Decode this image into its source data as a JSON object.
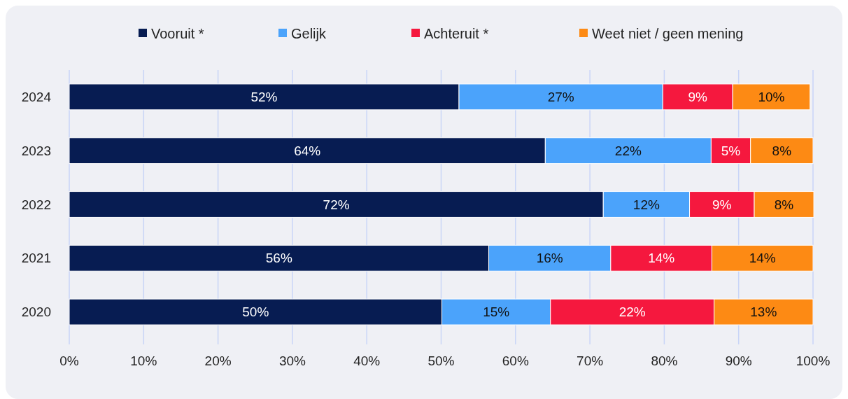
{
  "chart_data": {
    "type": "bar",
    "orientation": "horizontal",
    "stacked": true,
    "categories": [
      "2024",
      "2023",
      "2022",
      "2021",
      "2020"
    ],
    "series": [
      {
        "name": "Vooruit *",
        "color": "#071c52",
        "values": [
          52.4,
          64.0,
          71.8,
          56.4,
          50.1
        ],
        "value_labels": [
          "52%",
          "64%",
          "72%",
          "56%",
          "50%"
        ]
      },
      {
        "name": "Gelijk",
        "color": "#4ba3fb",
        "values": [
          27.4,
          22.3,
          11.6,
          16.4,
          14.6
        ],
        "value_labels": [
          "27%",
          "22%",
          "12%",
          "16%",
          "15%"
        ]
      },
      {
        "name": "Achteruit *",
        "color": "#f5183e",
        "values": [
          9.4,
          5.3,
          8.7,
          13.6,
          22.0
        ],
        "value_labels": [
          "9%",
          "5%",
          "9%",
          "14%",
          "22%"
        ]
      },
      {
        "name": "Weet niet / geen mening",
        "color": "#fd8a14",
        "values": [
          10.4,
          8.4,
          8.0,
          13.6,
          13.3
        ],
        "value_labels": [
          "10%",
          "8%",
          "8%",
          "14%",
          "13%"
        ]
      }
    ],
    "xlim": [
      0,
      100
    ],
    "xticks": [
      {
        "value": 0,
        "label": "0%"
      },
      {
        "value": 10,
        "label": "10%"
      },
      {
        "value": 20,
        "label": "20%"
      },
      {
        "value": 30,
        "label": "30%"
      },
      {
        "value": 40,
        "label": "40%"
      },
      {
        "value": 50,
        "label": "50%"
      },
      {
        "value": 60,
        "label": "60%"
      },
      {
        "value": 70,
        "label": "70%"
      },
      {
        "value": 80,
        "label": "80%"
      },
      {
        "value": 90,
        "label": "90%"
      },
      {
        "value": 100,
        "label": "100%"
      }
    ],
    "grid": "x",
    "legend": "top"
  }
}
